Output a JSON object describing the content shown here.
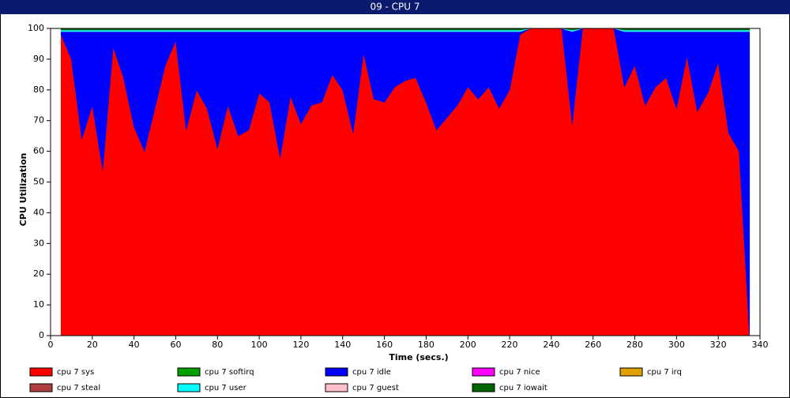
{
  "chart_data": {
    "type": "stacked_area",
    "title": "09 - CPU 7",
    "xlabel": "Time (secs.)",
    "ylabel": "CPU Utilization",
    "x": [
      5,
      10,
      15,
      20,
      25,
      30,
      35,
      40,
      45,
      50,
      55,
      60,
      65,
      70,
      75,
      80,
      85,
      90,
      95,
      100,
      105,
      110,
      115,
      120,
      125,
      130,
      135,
      140,
      145,
      150,
      155,
      160,
      165,
      170,
      175,
      180,
      185,
      190,
      195,
      200,
      205,
      210,
      215,
      220,
      225,
      230,
      235,
      240,
      245,
      250,
      255,
      260,
      265,
      270,
      275,
      280,
      285,
      290,
      295,
      300,
      305,
      310,
      315,
      320,
      325,
      330,
      335
    ],
    "series": [
      {
        "name": "cpu 7 sys",
        "color": "#ff0000",
        "values": [
          98,
          90,
          64,
          75,
          54,
          94,
          84,
          68,
          60,
          74,
          88,
          96,
          67,
          80,
          74,
          61,
          75,
          65,
          67,
          79,
          76,
          58,
          78,
          69,
          75,
          76,
          85,
          80,
          66,
          92,
          77,
          76,
          81,
          83,
          84,
          76,
          67,
          71,
          75,
          81,
          77,
          81,
          74,
          80,
          98,
          100,
          100,
          100,
          100,
          69,
          100,
          100,
          100,
          100,
          81,
          88,
          75,
          81,
          84,
          74,
          91,
          73,
          79,
          89,
          66,
          60,
          0
        ]
      },
      {
        "name": "cpu 7 softirq",
        "color": "#00a000",
        "values": [
          0,
          0,
          0,
          0,
          0,
          0,
          0,
          0,
          0,
          0,
          0,
          0,
          0,
          0,
          0,
          0,
          0,
          0,
          0,
          0,
          0,
          0,
          0,
          0,
          0,
          0,
          0,
          0,
          0,
          0,
          0,
          0,
          0,
          0,
          0,
          0,
          0,
          0,
          0,
          0,
          0,
          0,
          0,
          0,
          0,
          0,
          0,
          0,
          0,
          0,
          0,
          0,
          0,
          0,
          0,
          0,
          0,
          0,
          0,
          0,
          0,
          0,
          0,
          0,
          0,
          0,
          0
        ]
      },
      {
        "name": "cpu 7 idle",
        "color": "#0000ff",
        "values": [
          1,
          9,
          35,
          24,
          45,
          5,
          15,
          31,
          39,
          25,
          11,
          3,
          32,
          19,
          25,
          38,
          24,
          34,
          32,
          20,
          23,
          41,
          21,
          30,
          24,
          23,
          14,
          19,
          33,
          7,
          22,
          23,
          18,
          16,
          15,
          23,
          32,
          28,
          24,
          18,
          22,
          18,
          25,
          19,
          1,
          0,
          0,
          0,
          0,
          30,
          0,
          0,
          0,
          0,
          18,
          11,
          24,
          18,
          15,
          25,
          8,
          26,
          20,
          10,
          33,
          39,
          99
        ]
      },
      {
        "name": "cpu 7 nice",
        "color": "#ff00ff",
        "values": [
          0,
          0,
          0,
          0,
          0,
          0,
          0,
          0,
          0,
          0,
          0,
          0,
          0,
          0,
          0,
          0,
          0,
          0,
          0,
          0,
          0,
          0,
          0,
          0,
          0,
          0,
          0,
          0,
          0,
          0,
          0,
          0,
          0,
          0,
          0,
          0,
          0,
          0,
          0,
          0,
          0,
          0,
          0,
          0,
          0,
          0,
          0,
          0,
          0,
          0,
          0,
          0,
          0,
          0,
          0,
          0,
          0,
          0,
          0,
          0,
          0,
          0,
          0,
          0,
          0,
          0,
          0
        ]
      },
      {
        "name": "cpu 7 irq",
        "color": "#e0a000",
        "values": [
          0,
          0,
          0,
          0,
          0,
          0,
          0,
          0,
          0,
          0,
          0,
          0,
          0,
          0,
          0,
          0,
          0,
          0,
          0,
          0,
          0,
          0,
          0,
          0,
          0,
          0,
          0,
          0,
          0,
          0,
          0,
          0,
          0,
          0,
          0,
          0,
          0,
          0,
          0,
          0,
          0,
          0,
          0,
          0,
          0,
          0,
          0,
          0,
          0,
          0,
          0,
          0,
          0,
          0,
          0,
          0,
          0,
          0,
          0,
          0,
          0,
          0,
          0,
          0,
          0,
          0,
          0
        ]
      },
      {
        "name": "cpu 7 steal",
        "color": "#b04040",
        "values": [
          0,
          0,
          0,
          0,
          0,
          0,
          0,
          0,
          0,
          0,
          0,
          0,
          0,
          0,
          0,
          0,
          0,
          0,
          0,
          0,
          0,
          0,
          0,
          0,
          0,
          0,
          0,
          0,
          0,
          0,
          0,
          0,
          0,
          0,
          0,
          0,
          0,
          0,
          0,
          0,
          0,
          0,
          0,
          0,
          0,
          0,
          0,
          0,
          0,
          0,
          0,
          0,
          0,
          0,
          0,
          0,
          0,
          0,
          0,
          0,
          0,
          0,
          0,
          0,
          0,
          0,
          0
        ]
      },
      {
        "name": "cpu 7 user",
        "color": "#00ffff",
        "values": [
          0.5,
          0.5,
          0.5,
          0.5,
          0.5,
          0.5,
          0.5,
          0.5,
          0.5,
          0.5,
          0.5,
          0.5,
          0.5,
          0.5,
          0.5,
          0.5,
          0.5,
          0.5,
          0.5,
          0.5,
          0.5,
          0.5,
          0.5,
          0.5,
          0.5,
          0.5,
          0.5,
          0.5,
          0.5,
          0.5,
          0.5,
          0.5,
          0.5,
          0.5,
          0.5,
          0.5,
          0.5,
          0.5,
          0.5,
          0.5,
          0.5,
          0.5,
          0.5,
          0.5,
          0.5,
          0,
          0,
          0,
          0,
          0.5,
          0,
          0,
          0,
          0,
          0.5,
          0.5,
          0.5,
          0.5,
          0.5,
          0.5,
          0.5,
          0.5,
          0.5,
          0.5,
          0.5,
          0.5,
          0.5
        ]
      },
      {
        "name": "cpu 7 guest",
        "color": "#ffc0cb",
        "values": [
          0,
          0,
          0,
          0,
          0,
          0,
          0,
          0,
          0,
          0,
          0,
          0,
          0,
          0,
          0,
          0,
          0,
          0,
          0,
          0,
          0,
          0,
          0,
          0,
          0,
          0,
          0,
          0,
          0,
          0,
          0,
          0,
          0,
          0,
          0,
          0,
          0,
          0,
          0,
          0,
          0,
          0,
          0,
          0,
          0,
          0,
          0,
          0,
          0,
          0,
          0,
          0,
          0,
          0,
          0,
          0,
          0,
          0,
          0,
          0,
          0,
          0,
          0,
          0,
          0,
          0,
          0
        ]
      },
      {
        "name": "cpu 7 iowait",
        "color": "#006400",
        "values": [
          0.5,
          0.5,
          0.5,
          0.5,
          0.5,
          0.5,
          0.5,
          0.5,
          0.5,
          0.5,
          0.5,
          0.5,
          0.5,
          0.5,
          0.5,
          0.5,
          0.5,
          0.5,
          0.5,
          0.5,
          0.5,
          0.5,
          0.5,
          0.5,
          0.5,
          0.5,
          0.5,
          0.5,
          0.5,
          0.5,
          0.5,
          0.5,
          0.5,
          0.5,
          0.5,
          0.5,
          0.5,
          0.5,
          0.5,
          0.5,
          0.5,
          0.5,
          0.5,
          0.5,
          0.5,
          0,
          0,
          0,
          0,
          0.5,
          0,
          0,
          0,
          0,
          0.5,
          0.5,
          0.5,
          0.5,
          0.5,
          0.5,
          0.5,
          0.5,
          0.5,
          0.5,
          0.5,
          0.5,
          0.5
        ]
      }
    ],
    "xlim": [
      0,
      340
    ],
    "xticks": [
      0,
      20,
      40,
      60,
      80,
      100,
      120,
      140,
      160,
      180,
      200,
      220,
      240,
      260,
      280,
      300,
      320,
      340
    ],
    "ylim": [
      0,
      100
    ],
    "yticks": [
      0,
      10,
      20,
      30,
      40,
      50,
      60,
      70,
      80,
      90,
      100
    ]
  }
}
